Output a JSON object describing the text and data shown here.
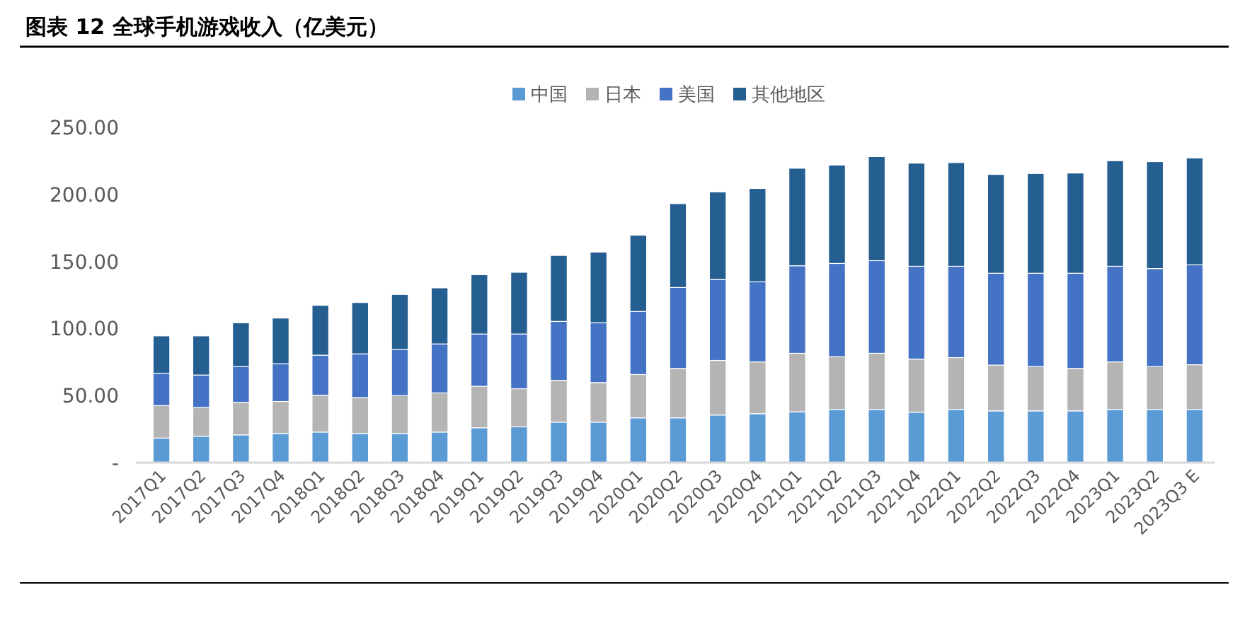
{
  "chart_data": {
    "type": "bar",
    "stacked": true,
    "title": "图表 12 全球手机游戏收入（亿美元）",
    "categories": [
      "2017Q1",
      "2017Q2",
      "2017Q3",
      "2017Q4",
      "2018Q1",
      "2018Q2",
      "2018Q3",
      "2018Q4",
      "2019Q1",
      "2019Q2",
      "2019Q3",
      "2019Q4",
      "2020Q1",
      "2020Q2",
      "2020Q3",
      "2020Q4",
      "2021Q1",
      "2021Q2",
      "2021Q3",
      "2021Q4",
      "2022Q1",
      "2022Q2",
      "2022Q3",
      "2022Q4",
      "2023Q1",
      "2023Q2",
      "2023Q3 E"
    ],
    "series": [
      {
        "name": "中国",
        "color": "#5b9bd5",
        "values": [
          18.3,
          19.7,
          20.7,
          21.8,
          22.8,
          21.8,
          21.8,
          22.8,
          26.0,
          26.7,
          30.2,
          30.2,
          33.4,
          33.4,
          35.5,
          36.5,
          37.9,
          39.7,
          39.7,
          37.6,
          39.7,
          38.6,
          38.6,
          38.6,
          39.7,
          39.7,
          39.7
        ]
      },
      {
        "name": "日本",
        "color": "#b4b4b4",
        "values": [
          24.2,
          21.4,
          24.2,
          23.8,
          27.4,
          26.7,
          28.1,
          29.2,
          30.9,
          28.4,
          31.2,
          29.5,
          32.3,
          36.8,
          40.7,
          38.6,
          43.6,
          39.3,
          41.8,
          39.6,
          38.6,
          34.1,
          33.0,
          31.6,
          35.4,
          31.9,
          33.3
        ]
      },
      {
        "name": "美国",
        "color": "#4472c4",
        "values": [
          24.2,
          24.2,
          26.7,
          28.1,
          29.9,
          32.6,
          34.4,
          36.5,
          39.0,
          40.8,
          43.9,
          44.6,
          47.0,
          60.4,
          60.4,
          59.7,
          65.3,
          69.5,
          69.1,
          69.2,
          68.1,
          68.5,
          69.6,
          71.0,
          71.3,
          73.1,
          74.5
        ]
      },
      {
        "name": "其他地区",
        "color": "#255e91",
        "values": [
          27.8,
          29.2,
          32.7,
          34.1,
          37.2,
          38.3,
          41.1,
          41.8,
          44.2,
          46.0,
          49.2,
          52.7,
          56.9,
          62.5,
          65.3,
          69.6,
          72.7,
          73.4,
          77.6,
          76.9,
          77.3,
          73.7,
          74.4,
          74.7,
          78.7,
          79.7,
          79.7
        ]
      }
    ],
    "ylim": [
      0,
      250
    ],
    "yticks": [
      {
        "value": 0,
        "label": "-"
      },
      {
        "value": 50,
        "label": "50.00"
      },
      {
        "value": 100,
        "label": "100.00"
      },
      {
        "value": 150,
        "label": "150.00"
      },
      {
        "value": 200,
        "label": "200.00"
      },
      {
        "value": 250,
        "label": "250.00"
      }
    ],
    "legend": "top"
  }
}
